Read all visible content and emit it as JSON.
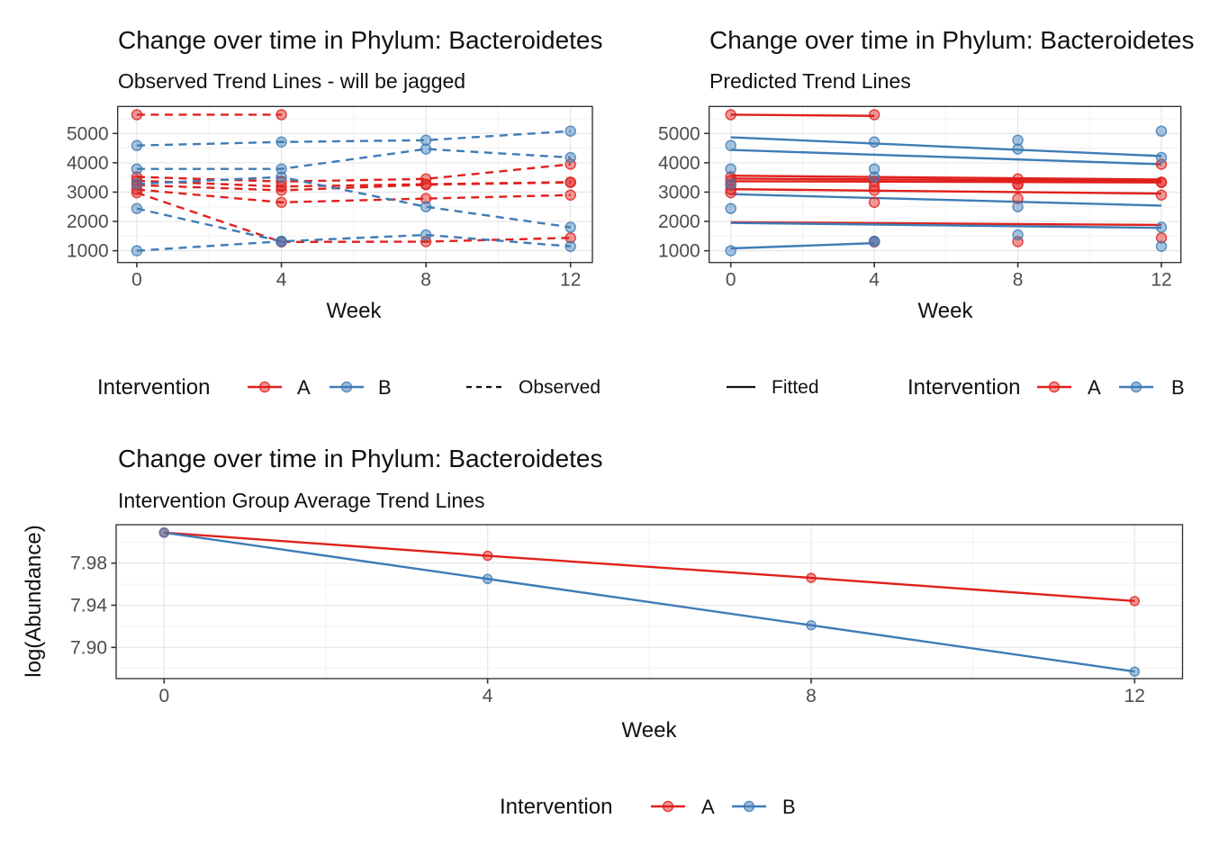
{
  "figure": {
    "background": "#ffffff"
  },
  "colors": {
    "red": "#e0201c",
    "blue": "#3f7cb6",
    "grid_major": "#e4e4e4",
    "grid_minor": "#f1f1f1",
    "panel_border": "#2b2b2b",
    "tick_mark": "#333333",
    "tick_label": "#4d4d4d",
    "black": "#000000"
  },
  "legends": {
    "left": {
      "title": "Intervention",
      "items": [
        {
          "label": "A",
          "color_key": "red"
        },
        {
          "label": "B",
          "color_key": "blue"
        }
      ],
      "extra": {
        "label": "Observed",
        "line_style": "dashed"
      }
    },
    "right": {
      "extra": {
        "label": "Fitted",
        "line_style": "solid"
      },
      "title": "Intervention",
      "items": [
        {
          "label": "A",
          "color_key": "red"
        },
        {
          "label": "B",
          "color_key": "blue"
        }
      ]
    },
    "bottom": {
      "title": "Intervention",
      "items": [
        {
          "label": "A",
          "color_key": "red"
        },
        {
          "label": "B",
          "color_key": "blue"
        }
      ]
    }
  },
  "chart_data": [
    {
      "type": "line",
      "title": "Change over time in Phylum: Bacteroidetes",
      "subtitle": "Observed Trend Lines - will be jagged",
      "xlabel": "Week",
      "x": [
        0,
        4,
        8,
        12
      ],
      "xticks": [
        "0",
        "4",
        "8",
        "12"
      ],
      "yticks": [
        "1000",
        "2000",
        "3000",
        "4000",
        "5000"
      ],
      "xlim": [
        -0.64,
        13.7
      ],
      "ylim": [
        520,
        5920
      ],
      "line_style": "dashed",
      "legend_groups": [
        "A",
        "B"
      ],
      "series": [
        {
          "name": "A-1",
          "group": "A",
          "values": [
            5640,
            5640,
            null,
            null
          ]
        },
        {
          "name": "A-2",
          "group": "A",
          "values": [
            3520,
            3360,
            3450,
            3950
          ]
        },
        {
          "name": "A-3",
          "group": "A",
          "values": [
            3390,
            3190,
            3270,
            3340
          ]
        },
        {
          "name": "A-4",
          "group": "A",
          "values": [
            3240,
            3060,
            3250,
            3330
          ]
        },
        {
          "name": "A-5",
          "group": "A",
          "values": [
            3090,
            2650,
            2780,
            2900
          ]
        },
        {
          "name": "A-6",
          "group": "A",
          "values": [
            2980,
            1300,
            1310,
            1440
          ]
        },
        {
          "name": "B-1",
          "group": "B",
          "values": [
            4590,
            4710,
            4770,
            5080
          ]
        },
        {
          "name": "B-2",
          "group": "B",
          "values": [
            3790,
            3790,
            4470,
            4180
          ]
        },
        {
          "name": "B-3",
          "group": "B",
          "values": [
            3280,
            3515,
            2500,
            1800
          ]
        },
        {
          "name": "B-4",
          "group": "B",
          "values": [
            2440,
            1320,
            1540,
            1150
          ]
        },
        {
          "name": "B-5",
          "group": "B",
          "values": [
            1000,
            1320,
            null,
            null
          ]
        }
      ]
    },
    {
      "type": "line",
      "title": "Change over time in Phylum: Bacteroidetes",
      "subtitle": "Predicted Trend Lines",
      "xlabel": "Week",
      "x": [
        0,
        4,
        8,
        12
      ],
      "xticks": [
        "0",
        "4",
        "8",
        "12"
      ],
      "yticks": [
        "1000",
        "2000",
        "3000",
        "4000",
        "5000"
      ],
      "xlim": [
        -0.64,
        13.7
      ],
      "ylim": [
        520,
        5920
      ],
      "line_style": "solid",
      "legend_groups": [
        "A",
        "B"
      ],
      "fit_lines": [
        {
          "group": "A",
          "x": [
            0,
            4
          ],
          "y": [
            5640,
            5600
          ]
        },
        {
          "group": "A",
          "x": [
            0,
            12
          ],
          "y": [
            3560,
            3430
          ]
        },
        {
          "group": "A",
          "x": [
            0,
            12
          ],
          "y": [
            3460,
            3380
          ]
        },
        {
          "group": "A",
          "x": [
            0,
            12
          ],
          "y": [
            3370,
            3330
          ]
        },
        {
          "group": "A",
          "x": [
            0,
            12
          ],
          "y": [
            3100,
            2950
          ]
        },
        {
          "group": "A",
          "x": [
            0,
            12
          ],
          "y": [
            1970,
            1880
          ]
        },
        {
          "group": "B",
          "x": [
            0,
            12
          ],
          "y": [
            4870,
            4230
          ]
        },
        {
          "group": "B",
          "x": [
            0,
            12
          ],
          "y": [
            4440,
            3950
          ]
        },
        {
          "group": "B",
          "x": [
            0,
            12
          ],
          "y": [
            2930,
            2540
          ]
        },
        {
          "group": "B",
          "x": [
            0,
            12
          ],
          "y": [
            1950,
            1780
          ]
        },
        {
          "group": "B",
          "x": [
            0,
            4
          ],
          "y": [
            1080,
            1260
          ]
        }
      ],
      "points": [
        {
          "name": "A-1",
          "group": "A",
          "values": [
            5640,
            5640,
            null,
            null
          ]
        },
        {
          "name": "A-2",
          "group": "A",
          "values": [
            3520,
            3360,
            3450,
            3950
          ]
        },
        {
          "name": "A-3",
          "group": "A",
          "values": [
            3390,
            3190,
            3270,
            3340
          ]
        },
        {
          "name": "A-4",
          "group": "A",
          "values": [
            3240,
            3060,
            3250,
            3330
          ]
        },
        {
          "name": "A-5",
          "group": "A",
          "values": [
            3090,
            2650,
            2780,
            2900
          ]
        },
        {
          "name": "A-6",
          "group": "A",
          "values": [
            2980,
            1300,
            1310,
            1440
          ]
        },
        {
          "name": "B-1",
          "group": "B",
          "values": [
            4590,
            4710,
            4770,
            5080
          ]
        },
        {
          "name": "B-2",
          "group": "B",
          "values": [
            3790,
            3790,
            4470,
            4180
          ]
        },
        {
          "name": "B-3",
          "group": "B",
          "values": [
            3280,
            3515,
            2500,
            1800
          ]
        },
        {
          "name": "B-4",
          "group": "B",
          "values": [
            2440,
            1320,
            1540,
            1150
          ]
        },
        {
          "name": "B-5",
          "group": "B",
          "values": [
            1000,
            1320,
            null,
            null
          ]
        }
      ]
    },
    {
      "type": "line",
      "title": "Change over time in Phylum: Bacteroidetes",
      "subtitle": "Intervention Group Average Trend Lines",
      "xlabel": "Week",
      "ylabel": "log(Abundance)",
      "x": [
        0,
        4,
        8,
        12
      ],
      "xticks": [
        "0",
        "4",
        "8",
        "12"
      ],
      "yticks": [
        "7.90",
        "7.94",
        "7.98"
      ],
      "xlim": [
        -0.64,
        13.7
      ],
      "ylim": [
        7.868,
        8.017
      ],
      "line_style": "solid",
      "legend_groups": [
        "A",
        "B"
      ],
      "series": [
        {
          "name": "A",
          "group": "A",
          "values": [
            8.009,
            7.987,
            7.966,
            7.944
          ]
        },
        {
          "name": "B",
          "group": "B",
          "values": [
            8.009,
            7.965,
            7.921,
            7.877
          ]
        }
      ]
    }
  ]
}
